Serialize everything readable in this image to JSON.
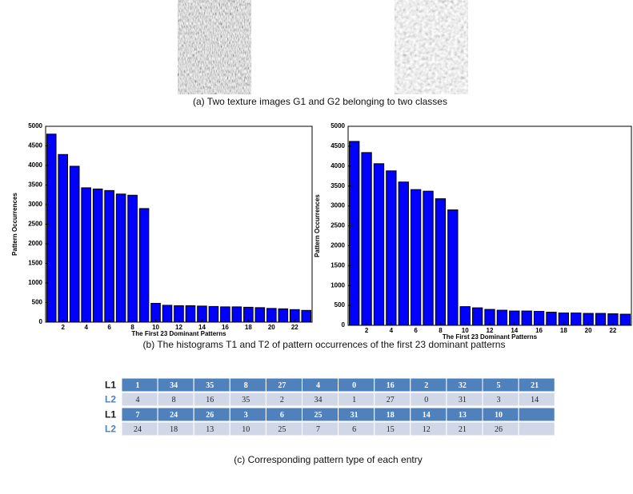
{
  "captions": {
    "a": "(a) Two texture images G1 and G2 belonging to two classes",
    "b": "(b) The histograms T1 and T2 of pattern occurrences of the first 23 dominant patterns",
    "c": "(c) Corresponding pattern type of each entry"
  },
  "chart_data": [
    {
      "type": "bar",
      "xlabel": "The First 23 Dominant Patterns",
      "ylabel": "Pattern Occurrences",
      "color": "#0000ff",
      "x": [
        1,
        2,
        3,
        4,
        5,
        6,
        7,
        8,
        9,
        10,
        11,
        12,
        13,
        14,
        15,
        16,
        17,
        18,
        19,
        20,
        21,
        22,
        23
      ],
      "values": [
        4800,
        4280,
        3980,
        3430,
        3400,
        3360,
        3270,
        3240,
        2900,
        480,
        430,
        420,
        420,
        410,
        400,
        390,
        390,
        380,
        370,
        350,
        340,
        320,
        300
      ],
      "xlim": [
        0.5,
        23.5
      ],
      "xticks": [
        2,
        4,
        6,
        8,
        10,
        12,
        14,
        16,
        18,
        20,
        22
      ],
      "ylim": [
        0,
        5000
      ],
      "yticks": [
        0,
        500,
        1000,
        1500,
        2000,
        2500,
        3000,
        3500,
        4000,
        4500,
        5000
      ]
    },
    {
      "type": "bar",
      "xlabel": "The First 23 Dominant Patterns",
      "ylabel": "Pattern Occurrences",
      "color": "#0000ff",
      "x": [
        1,
        2,
        3,
        4,
        5,
        6,
        7,
        8,
        9,
        10,
        11,
        12,
        13,
        14,
        15,
        16,
        17,
        18,
        19,
        20,
        21,
        22,
        23
      ],
      "values": [
        4620,
        4340,
        4060,
        3880,
        3600,
        3410,
        3370,
        3180,
        2900,
        470,
        440,
        400,
        380,
        360,
        360,
        350,
        330,
        310,
        310,
        300,
        300,
        290,
        280
      ],
      "xlim": [
        0.5,
        23.5
      ],
      "xticks": [
        2,
        4,
        6,
        8,
        10,
        12,
        14,
        16,
        18,
        20,
        22
      ],
      "ylim": [
        0,
        5000
      ],
      "yticks": [
        0,
        500,
        1000,
        1500,
        2000,
        2500,
        3000,
        3500,
        4000,
        4500,
        5000
      ]
    }
  ],
  "table": {
    "rows": [
      {
        "label": "L1",
        "cells": [
          1,
          34,
          35,
          8,
          27,
          4,
          0,
          16,
          2,
          32,
          5,
          21
        ]
      },
      {
        "label": "L2",
        "cells": [
          4,
          8,
          16,
          35,
          2,
          34,
          1,
          27,
          0,
          31,
          3,
          14
        ]
      },
      {
        "label": "L1",
        "cells": [
          7,
          24,
          26,
          3,
          6,
          25,
          31,
          18,
          14,
          13,
          10
        ]
      },
      {
        "label": "L2",
        "cells": [
          24,
          18,
          13,
          10,
          25,
          7,
          6,
          15,
          12,
          21,
          26
        ]
      }
    ]
  }
}
